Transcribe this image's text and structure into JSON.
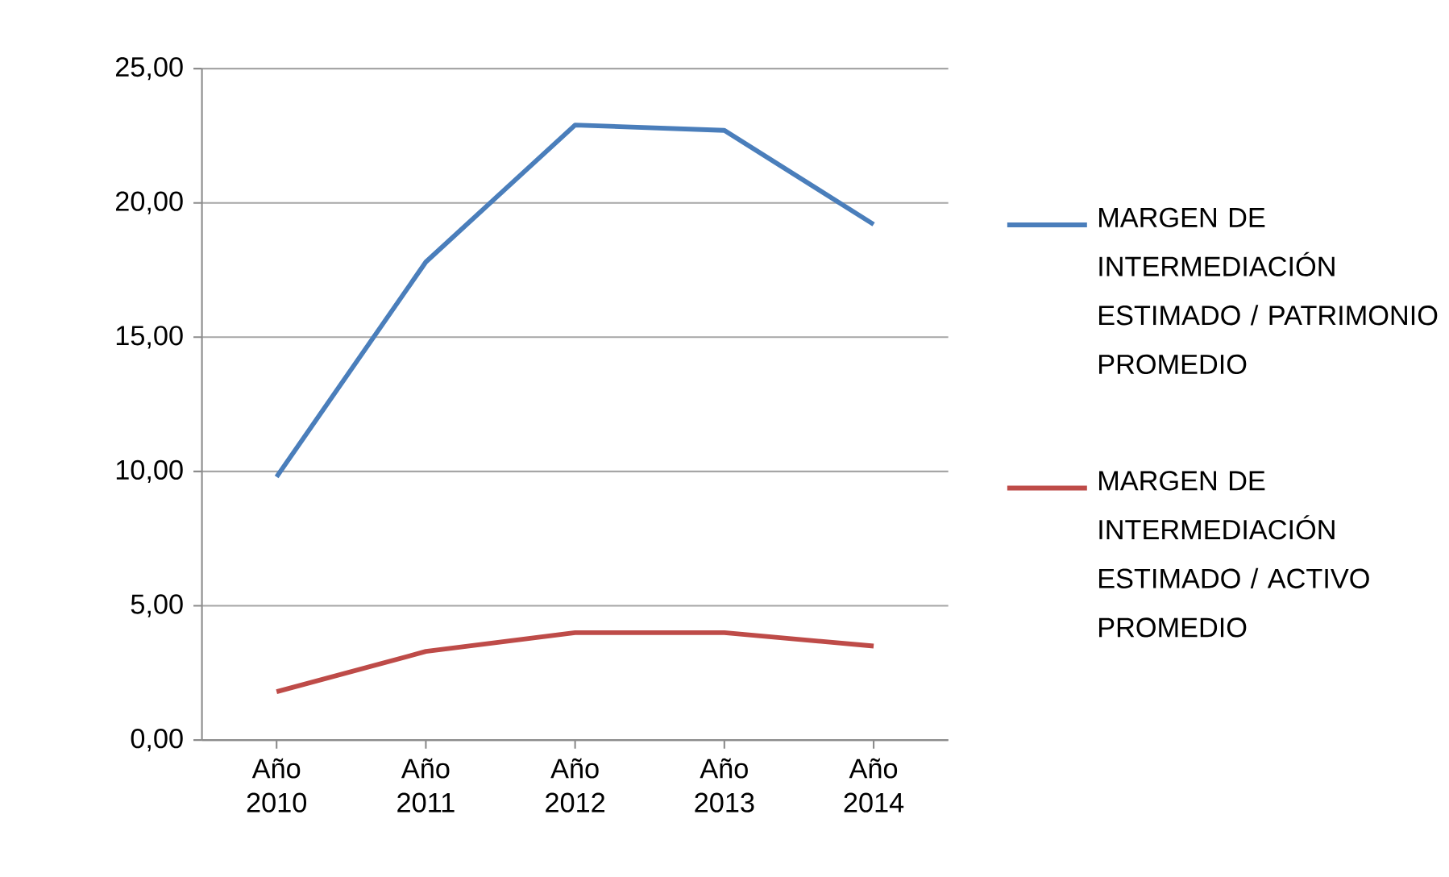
{
  "chart_data": {
    "type": "line",
    "categories": [
      "Año 2010",
      "Año 2011",
      "Año 2012",
      "Año 2013",
      "Año 2014"
    ],
    "series": [
      {
        "name": "MARGEN DE INTERMEDIACIÓN ESTIMADO / PATRIMONIO PROMEDIO",
        "color": "#4a7ebb",
        "values": [
          9.8,
          17.8,
          22.9,
          22.7,
          19.2
        ]
      },
      {
        "name": "MARGEN DE INTERMEDIACIÓN ESTIMADO / ACTIVO PROMEDIO",
        "color": "#be4b48",
        "values": [
          1.8,
          3.3,
          4.0,
          4.0,
          3.5
        ]
      }
    ],
    "ylim": [
      0,
      25
    ],
    "yticks": [
      {
        "value": 0,
        "label": "0,00"
      },
      {
        "value": 5,
        "label": "5,00"
      },
      {
        "value": 10,
        "label": "10,00"
      },
      {
        "value": 15,
        "label": "15,00"
      },
      {
        "value": 20,
        "label": "20,00"
      },
      {
        "value": 25,
        "label": "25,00"
      }
    ],
    "grid": "y",
    "legend": "right",
    "marker": "none",
    "line_style": "solid"
  }
}
